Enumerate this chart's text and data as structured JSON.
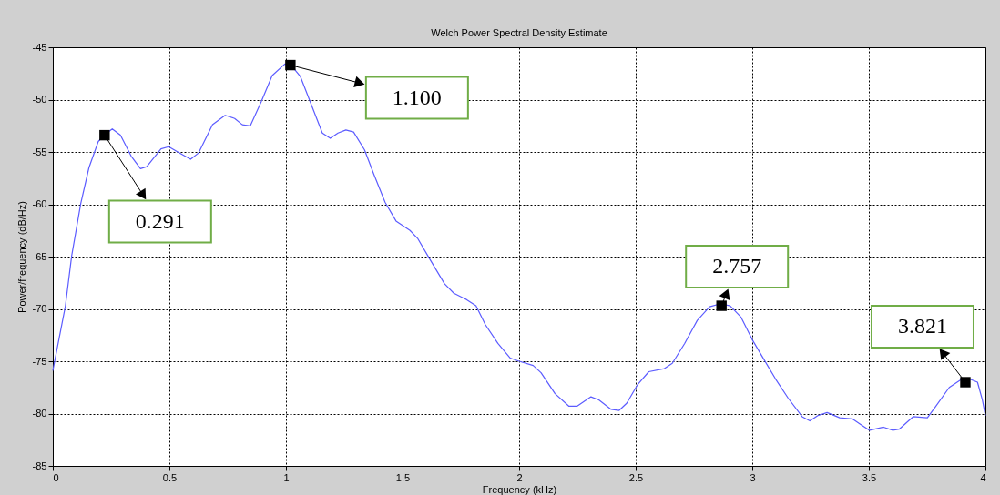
{
  "chart_data": {
    "type": "line",
    "title": "Welch Power Spectral Density Estimate",
    "xlabel": "Frequency (kHz)",
    "ylabel": "Power/frequency (dB/Hz)",
    "xlim": [
      0,
      4
    ],
    "xticks": [
      0,
      0.5,
      1,
      1.5,
      2,
      2.5,
      3,
      3.5,
      4
    ],
    "ylim": [
      -85,
      -45
    ],
    "yticks": [
      -85,
      -80,
      -75,
      -70,
      -65,
      -60,
      -55,
      -50,
      -45
    ],
    "grid": true,
    "series": [
      {
        "type": "line",
        "color": "#5c5cff",
        "marker": "none",
        "x": [
          0,
          0.054,
          0.081,
          0.12,
          0.155,
          0.195,
          0.22,
          0.255,
          0.29,
          0.336,
          0.376,
          0.403,
          0.464,
          0.497,
          0.551,
          0.591,
          0.625,
          0.685,
          0.739,
          0.78,
          0.813,
          0.847,
          0.894,
          0.941,
          0.995,
          1.022,
          1.062,
          1.109,
          1.156,
          1.19,
          1.223,
          1.257,
          1.29,
          1.337,
          1.378,
          1.425,
          1.472,
          1.532,
          1.566,
          1.613,
          1.68,
          1.72,
          1.774,
          1.815,
          1.855,
          1.909,
          1.962,
          2.0,
          2.06,
          2.094,
          2.154,
          2.214,
          2.248,
          2.308,
          2.342,
          2.395,
          2.429,
          2.462,
          2.509,
          2.556,
          2.623,
          2.657,
          2.71,
          2.764,
          2.817,
          2.864,
          2.905,
          2.952,
          2.999,
          3.052,
          3.1,
          3.153,
          3.214,
          3.247,
          3.281,
          3.321,
          3.375,
          3.429,
          3.462,
          3.503,
          3.563,
          3.603,
          3.63,
          3.69,
          3.751,
          3.784,
          3.845,
          3.892,
          3.932,
          3.966,
          3.987,
          4.0
        ],
        "values": [
          -75.9,
          -69.7,
          -64.9,
          -59.9,
          -56.5,
          -54.0,
          -53.4,
          -52.8,
          -53.4,
          -55.4,
          -56.6,
          -56.4,
          -54.7,
          -54.5,
          -55.2,
          -55.7,
          -55.1,
          -52.4,
          -51.5,
          -51.8,
          -52.4,
          -52.5,
          -50.2,
          -47.7,
          -46.6,
          -46.7,
          -47.8,
          -50.5,
          -53.2,
          -53.7,
          -53.2,
          -52.9,
          -53.1,
          -54.8,
          -57.2,
          -59.8,
          -61.6,
          -62.5,
          -63.3,
          -65.1,
          -67.6,
          -68.5,
          -69.1,
          -69.7,
          -71.5,
          -73.3,
          -74.7,
          -75.0,
          -75.4,
          -76.1,
          -78.1,
          -79.3,
          -79.3,
          -78.4,
          -78.7,
          -79.6,
          -79.7,
          -79.0,
          -77.2,
          -76.0,
          -75.7,
          -75.2,
          -73.3,
          -71.1,
          -69.8,
          -69.5,
          -69.7,
          -70.8,
          -72.9,
          -74.9,
          -76.7,
          -78.5,
          -80.3,
          -80.7,
          -80.2,
          -79.9,
          -80.4,
          -80.5,
          -81.0,
          -81.6,
          -81.3,
          -81.6,
          -81.5,
          -80.3,
          -80.4,
          -79.4,
          -77.5,
          -76.8,
          -76.7,
          -77.0,
          -78.7,
          -80.2
        ]
      },
      {
        "type": "scatter",
        "color": "#000000",
        "marker": "square",
        "x": [
          0.222,
          1.019,
          2.868,
          3.914
        ],
        "values": [
          -53.4,
          -46.7,
          -69.7,
          -77.0
        ]
      }
    ],
    "annotations": [
      "0.291",
      "1.100",
      "2.757",
      "3.821"
    ]
  }
}
